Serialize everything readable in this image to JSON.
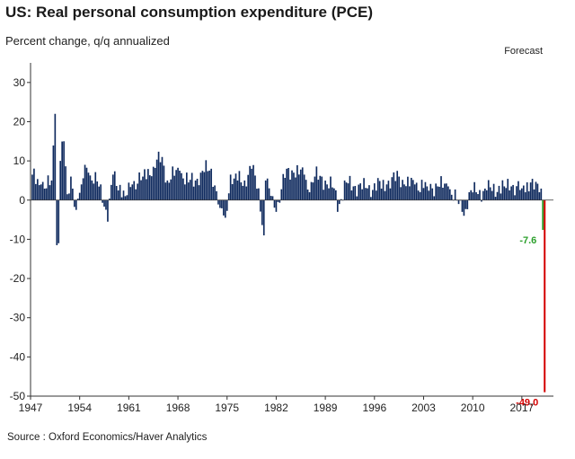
{
  "title": "US: Real personal consumption expenditure (PCE)",
  "subtitle": "Percent change, q/q annualized",
  "source": "Source : Oxford Economics/Haver Analytics",
  "chart_data": {
    "type": "bar",
    "title": "US: Real personal consumption expenditure (PCE)",
    "ylabel": "Percent change, q/q annualized",
    "xlabel": "",
    "xlim": [
      1947,
      2021.5
    ],
    "ylim": [
      -50,
      35
    ],
    "yticks": [
      30,
      20,
      10,
      0,
      -10,
      -20,
      -30,
      -40,
      -50
    ],
    "xticks": [
      "1947",
      "1954",
      "1961",
      "1968",
      "1975",
      "1982",
      "1989",
      "1996",
      "2003",
      "2010",
      "2017"
    ],
    "forecast_label": "Forecast",
    "colors": {
      "history": "#0f2a5e",
      "forecast_q1": "#2ca02c",
      "forecast_q2": "#d40000"
    },
    "history_anchors": {
      "x": [
        1947.25,
        1948.5,
        1949.25,
        1950.0,
        1950.5,
        1950.75,
        1951.0,
        1951.25,
        1951.75,
        1952.25,
        1952.75,
        1953.5,
        1954.25,
        1954.75,
        1955.25,
        1955.75,
        1957.0,
        1958.0,
        1958.75,
        1960.5,
        1961.5,
        1963.0,
        1964.5,
        1965.75,
        1966.5,
        1968.25,
        1969.5,
        1970.5,
        1971.25,
        1972.75,
        1974.0,
        1974.75,
        1975.5,
        1976.0,
        1977.5,
        1978.5,
        1979.5,
        1980.25,
        1980.5,
        1981.0,
        1981.5,
        1982.0,
        1983.5,
        1984.5,
        1986.0,
        1986.75,
        1987.5,
        1988.5,
        1989.25,
        1990.5,
        1990.75,
        1991.0,
        1992.0,
        1993.0,
        1995.0,
        1997.75,
        1999.5,
        2000.25,
        2001.75,
        2003.5,
        2005.0,
        2006.5,
        2008.0,
        2008.5,
        2008.75,
        2009.5,
        2010.5,
        2012.0,
        2014.5,
        2015.5,
        2017.0,
        2018.25,
        2019.5
      ],
      "y": [
        6.5,
        4.0,
        3.0,
        5.0,
        22.0,
        -11.5,
        -11.0,
        10.0,
        15.0,
        1.5,
        6.0,
        -2.5,
        4.0,
        9.0,
        7.0,
        5.0,
        4.0,
        -5.5,
        6.5,
        1.0,
        4.0,
        6.0,
        8.5,
        11.0,
        5.0,
        7.5,
        4.5,
        5.0,
        7.0,
        8.0,
        -2.0,
        -4.5,
        6.5,
        5.5,
        5.0,
        8.0,
        3.0,
        -9.0,
        5.0,
        3.0,
        1.0,
        -3.0,
        8.0,
        7.0,
        6.5,
        2.0,
        6.0,
        6.0,
        4.0,
        2.5,
        -3.0,
        -1.0,
        4.5,
        3.5,
        3.0,
        4.0,
        6.0,
        4.0,
        4.0,
        3.5,
        3.5,
        3.5,
        -1.0,
        -3.0,
        -4.0,
        2.0,
        2.0,
        2.5,
        3.5,
        3.5,
        3.0,
        4.5,
        2.0
      ]
    },
    "history_range": {
      "start": 1947.25,
      "end": 2019.75,
      "frequency": "quarterly"
    },
    "forecast": [
      {
        "period": "2020 Q1",
        "x": 2020.0,
        "value": -7.6,
        "label": "-7.6"
      },
      {
        "period": "2020 Q2",
        "x": 2020.25,
        "value": -49.0,
        "label": "-49.0"
      }
    ]
  }
}
